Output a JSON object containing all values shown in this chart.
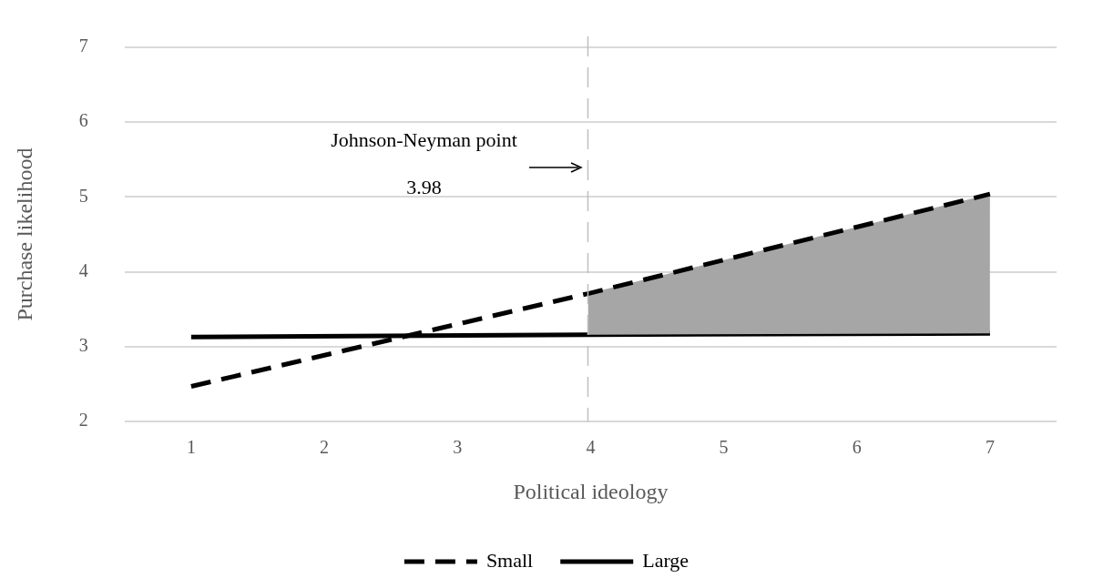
{
  "chart_data": {
    "type": "line",
    "xlabel": "Political ideology",
    "ylabel": "Purchase likelihood",
    "xlim": [
      0.5,
      7.5
    ],
    "xticks": [
      1,
      2,
      3,
      4,
      5,
      6,
      7
    ],
    "ylim": [
      2,
      7
    ],
    "yticks": [
      2,
      3,
      4,
      5,
      6,
      7
    ],
    "grid": "y",
    "legend": "bottom",
    "series": [
      {
        "name": "Small",
        "color": "#000000",
        "line_style": "dashed",
        "x": [
          1,
          3.98,
          7
        ],
        "values": [
          2.47,
          3.71,
          5.04
        ],
        "lower": [
          null,
          3.16,
          3.18
        ],
        "upper": [
          null,
          3.71,
          5.04
        ]
      },
      {
        "name": "Large",
        "color": "#000000",
        "line_style": "solid",
        "x": [
          1,
          3.98,
          7
        ],
        "values": [
          3.13,
          3.16,
          3.18
        ]
      }
    ],
    "ref_lines": [
      {
        "axis": "x",
        "value": 3.98,
        "color": "#bfbfbf",
        "line_style": "dashed"
      }
    ],
    "annotations": [
      "Johnson-Neyman point",
      "3.98"
    ]
  }
}
